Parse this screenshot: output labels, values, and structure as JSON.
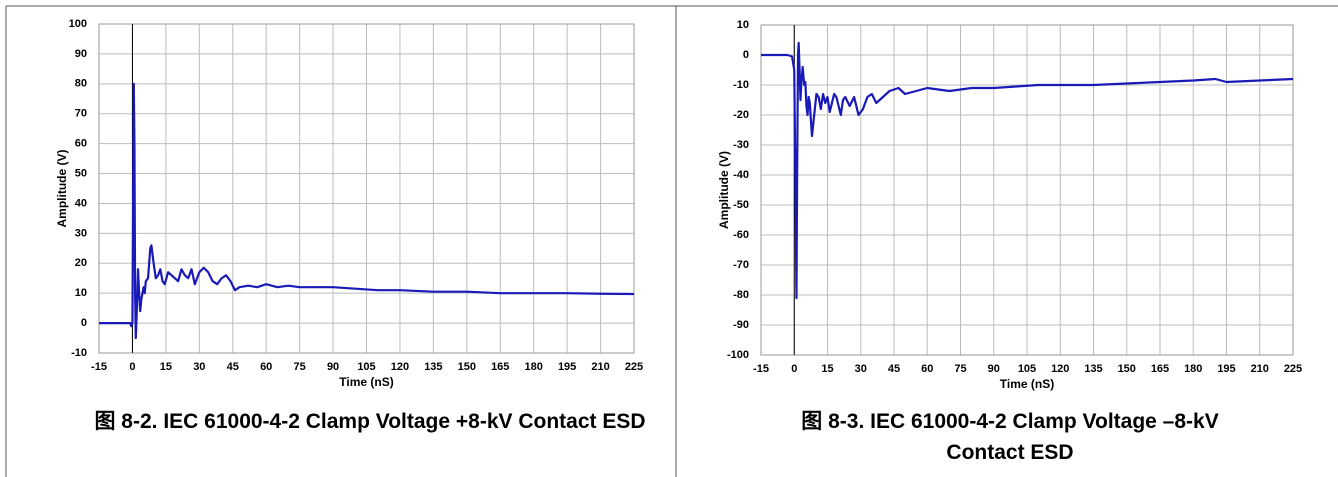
{
  "chart_data": [
    {
      "type": "line",
      "caption": "图 8-2. IEC 61000-4-2 Clamp Voltage +8-kV Contact ESD",
      "xlabel": "Time (nS)",
      "ylabel": "Amplitude (V)",
      "xlim": [
        -15,
        225
      ],
      "xticks": [
        -15,
        0,
        15,
        30,
        45,
        60,
        75,
        90,
        105,
        120,
        135,
        150,
        165,
        180,
        195,
        210,
        225
      ],
      "ylim": [
        -10,
        100
      ],
      "yticks": [
        -10,
        0,
        10,
        20,
        30,
        40,
        50,
        60,
        70,
        80,
        90,
        100
      ],
      "grid": true,
      "x": [
        -15,
        -5,
        -1,
        -0.5,
        0,
        0.3,
        0.6,
        0.9,
        1.2,
        1.5,
        2,
        2.5,
        3,
        3.5,
        4,
        5,
        5.5,
        6,
        7,
        8,
        8.5,
        9.5,
        10.5,
        11.5,
        12.5,
        13.5,
        14.5,
        16,
        17.5,
        19,
        20.5,
        22,
        23.5,
        25,
        26.5,
        28,
        30,
        32,
        34,
        36,
        38,
        40,
        42,
        44,
        46,
        48,
        52,
        56,
        60,
        65,
        70,
        75,
        80,
        90,
        100,
        110,
        120,
        135,
        150,
        165,
        180,
        195,
        210,
        225
      ],
      "series": [
        {
          "color": "#1a1ab8",
          "values": [
            0,
            0,
            0,
            -1,
            0,
            40,
            80,
            60,
            10,
            -5,
            5,
            18,
            10,
            4,
            8,
            12,
            10,
            14,
            15,
            25,
            26,
            20,
            15,
            16,
            18,
            14,
            13,
            17,
            16,
            15,
            14,
            18,
            16,
            15,
            18,
            13,
            17,
            18.5,
            17,
            14,
            13,
            15,
            16,
            14,
            11,
            12,
            12.5,
            12,
            13,
            12,
            12.5,
            12,
            12,
            12,
            11.5,
            11,
            11,
            10.5,
            10.5,
            10,
            10,
            10,
            9.8,
            9.7
          ]
        }
      ]
    },
    {
      "type": "line",
      "caption": "图 8-3. IEC 61000-4-2 Clamp Voltage –8-kV Contact ESD",
      "xlabel": "Time (nS)",
      "ylabel": "Amplitude (V)",
      "xlim": [
        -15,
        225
      ],
      "xticks": [
        -15,
        0,
        15,
        30,
        45,
        60,
        75,
        90,
        105,
        120,
        135,
        150,
        165,
        180,
        195,
        210,
        225
      ],
      "ylim": [
        -100,
        10
      ],
      "yticks": [
        -100,
        -90,
        -80,
        -70,
        -60,
        -50,
        -40,
        -30,
        -20,
        -10,
        0,
        10
      ],
      "grid": true,
      "x": [
        -15,
        -3,
        -1,
        0,
        0.5,
        1,
        1.3,
        1.7,
        2,
        2.4,
        2.8,
        3.3,
        3.8,
        4.5,
        5,
        5.5,
        6,
        6.5,
        7,
        8,
        9,
        10,
        11,
        12,
        13,
        14,
        15,
        16,
        17,
        18,
        19,
        20,
        21,
        22,
        23,
        25,
        27,
        29,
        31,
        33,
        35,
        37,
        40,
        43,
        47,
        50,
        55,
        60,
        70,
        80,
        90,
        100,
        110,
        120,
        135,
        150,
        165,
        180,
        190,
        195,
        210,
        225
      ],
      "series": [
        {
          "color": "#1a1ab8",
          "values": [
            0,
            0,
            -0.5,
            -5,
            -40,
            -81,
            -40,
            0,
            4,
            -5,
            -15,
            -8,
            -4,
            -10,
            -9,
            -17,
            -20,
            -14,
            -16,
            -27,
            -20,
            -13,
            -14,
            -18,
            -13,
            -16,
            -14,
            -19,
            -16,
            -13,
            -14,
            -17,
            -20,
            -15,
            -14,
            -17,
            -14,
            -20,
            -18,
            -14,
            -13,
            -16,
            -14,
            -12,
            -11,
            -13,
            -12,
            -11,
            -12,
            -11,
            -11,
            -10.5,
            -10,
            -10,
            -10,
            -9.5,
            -9,
            -8.5,
            -8,
            -9,
            -8.5,
            -8
          ]
        }
      ]
    }
  ]
}
